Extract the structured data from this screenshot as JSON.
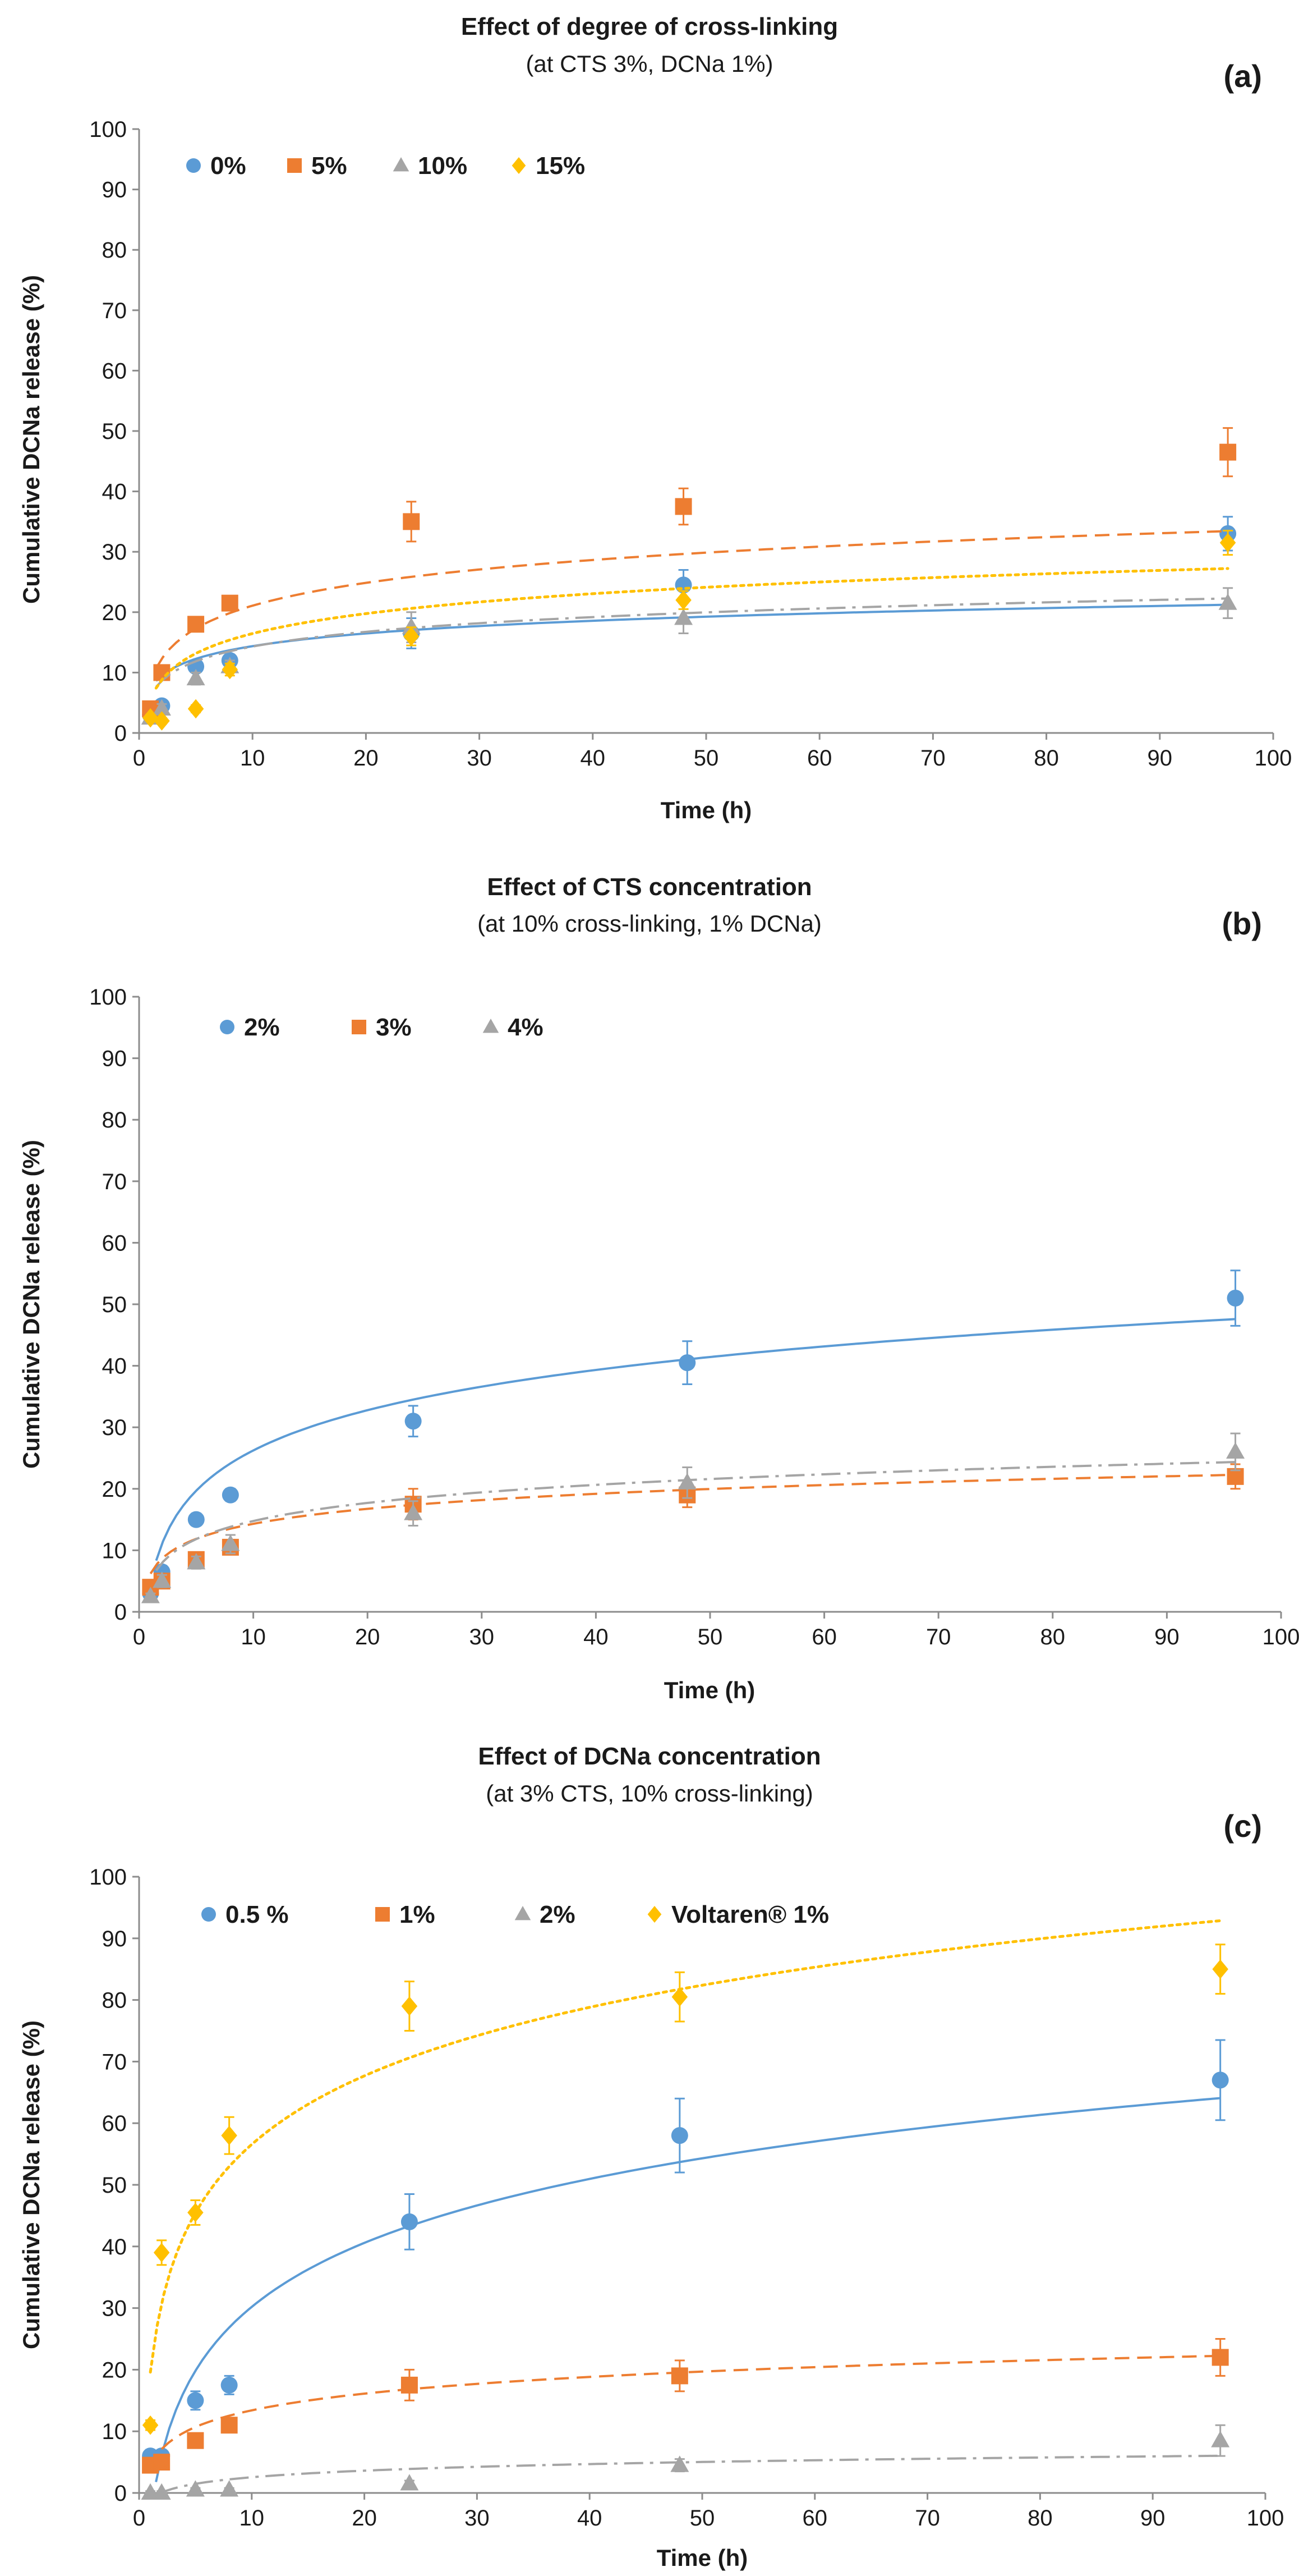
{
  "colors": {
    "blue": "#5b9bd5",
    "orange": "#ed7d31",
    "gray": "#a5a5a5",
    "yellow": "#ffc000"
  },
  "chart_data": [
    {
      "type": "scatter",
      "panel": "(a)",
      "title": "Effect of degree of cross-linking",
      "subtitle": "(at CTS 3%, DCNa 1%)",
      "xlabel": "Time (h)",
      "ylabel": "Cumulative DCNa release (%)",
      "xlim": [
        0,
        100
      ],
      "ylim": [
        0,
        100
      ],
      "xticks": [
        "0",
        "10",
        "20",
        "30",
        "40",
        "50",
        "60",
        "70",
        "80",
        "90",
        "100"
      ],
      "yticks": [
        "0",
        "10",
        "20",
        "30",
        "40",
        "50",
        "60",
        "70",
        "80",
        "90",
        "100"
      ],
      "x": [
        1,
        2,
        5,
        8,
        24,
        48,
        96
      ],
      "series": [
        {
          "name": "0%",
          "marker": "circle",
          "color": "blue",
          "line": "solid",
          "values": [
            3,
            4.5,
            11,
            12,
            16.5,
            24.5,
            33
          ],
          "errors": [
            0.8,
            0.8,
            0.8,
            1,
            2.5,
            2.5,
            2.8
          ],
          "fit": {
            "a": 3.03,
            "b": 7.4,
            "xmin": 1.5,
            "xmax": 96
          }
        },
        {
          "name": "5%",
          "marker": "square",
          "color": "orange",
          "line": "dashed",
          "values": [
            4,
            10,
            18,
            21.5,
            35,
            37.5,
            46.5
          ],
          "errors": [
            0.5,
            1,
            1,
            1,
            3.3,
            3,
            4
          ],
          "fit": {
            "a": 5.46,
            "b": 8.5,
            "xmin": 1.5,
            "xmax": 96
          }
        },
        {
          "name": "10%",
          "marker": "triangle",
          "color": "gray",
          "line": "dashdot",
          "values": [
            2.5,
            4,
            9,
            11,
            17.5,
            19,
            21.5
          ],
          "errors": [
            0.5,
            0.8,
            1,
            1,
            2.5,
            2.5,
            2.5
          ],
          "fit": {
            "a": 3.52,
            "b": 6.2,
            "xmin": 1.5,
            "xmax": 96
          }
        },
        {
          "name": "15%",
          "marker": "diamond",
          "color": "yellow",
          "line": "dotted",
          "values": [
            2.5,
            2,
            4,
            10.5,
            16,
            22,
            31.5
          ],
          "errors": [
            0.5,
            0.5,
            0.6,
            1,
            1.5,
            1.5,
            2
          ],
          "fit": {
            "a": 4.76,
            "b": 5.5,
            "xmin": 1.5,
            "xmax": 96
          }
        }
      ]
    },
    {
      "type": "scatter",
      "panel": "(b)",
      "title": "Effect of CTS concentration",
      "subtitle": "(at 10% cross-linking, 1% DCNa)",
      "xlabel": "Time (h)",
      "ylabel": "Cumulative DCNa release (%)",
      "xlim": [
        0,
        100
      ],
      "ylim": [
        0,
        100
      ],
      "xticks": [
        "0",
        "10",
        "20",
        "30",
        "40",
        "50",
        "60",
        "70",
        "80",
        "90",
        "100"
      ],
      "yticks": [
        "0",
        "10",
        "20",
        "30",
        "40",
        "50",
        "60",
        "70",
        "80",
        "90",
        "100"
      ],
      "x": [
        1,
        2,
        5,
        8,
        24,
        48,
        96
      ],
      "series": [
        {
          "name": "2%",
          "marker": "circle",
          "color": "blue",
          "line": "solid",
          "values": [
            3,
            6.5,
            15,
            19,
            31,
            40.5,
            51
          ],
          "errors": [
            0.8,
            1,
            1,
            1,
            2.5,
            3.5,
            4.5
          ],
          "fit": {
            "a": 9.44,
            "b": 4.5,
            "xmin": 1.5,
            "xmax": 96
          }
        },
        {
          "name": "3%",
          "marker": "square",
          "color": "orange",
          "line": "dashed",
          "values": [
            4,
            5,
            8.5,
            10.5,
            17.5,
            19,
            22
          ],
          "errors": [
            0.5,
            0.8,
            1,
            1,
            2.5,
            2,
            2
          ],
          "fit": {
            "a": 3.52,
            "b": 6.2,
            "xmin": 1,
            "xmax": 96
          }
        },
        {
          "name": "4%",
          "marker": "triangle",
          "color": "gray",
          "line": "dashdot",
          "values": [
            2.5,
            5,
            8,
            11,
            16,
            21,
            26
          ],
          "errors": [
            0.5,
            1,
            1,
            1.5,
            2,
            2.5,
            3
          ],
          "fit": {
            "a": 4.24,
            "b": 5,
            "xmin": 1.5,
            "xmax": 96
          }
        }
      ]
    },
    {
      "type": "scatter",
      "panel": "(c)",
      "title": "Effect of DCNa concentration",
      "subtitle": "(at 3% CTS, 10% cross-linking)",
      "xlabel": "Time (h)",
      "ylabel": "Cumulative DCNa release (%)",
      "xlim": [
        0,
        100
      ],
      "ylim": [
        0,
        100
      ],
      "xticks": [
        "0",
        "10",
        "20",
        "30",
        "40",
        "50",
        "60",
        "70",
        "80",
        "90",
        "100"
      ],
      "yticks": [
        "0",
        "10",
        "20",
        "30",
        "40",
        "50",
        "60",
        "70",
        "80",
        "90",
        "100"
      ],
      "x": [
        1,
        2,
        5,
        8,
        24,
        48,
        96
      ],
      "series": [
        {
          "name": "0.5 %",
          "marker": "circle",
          "color": "blue",
          "line": "solid",
          "values": [
            6,
            6,
            15,
            17.5,
            44,
            58,
            67
          ],
          "errors": [
            1,
            1,
            1.5,
            1.5,
            4.5,
            6,
            6.5
          ],
          "fit": {
            "a": 14.98,
            "b": -4.3,
            "xmin": 1.5,
            "xmax": 96
          }
        },
        {
          "name": "1%",
          "marker": "square",
          "color": "orange",
          "line": "dashed",
          "values": [
            4.5,
            5,
            8.5,
            11,
            17.5,
            19,
            22
          ],
          "errors": [
            0.5,
            0.8,
            1,
            1,
            2.5,
            2.5,
            3
          ],
          "fit": {
            "a": 3.91,
            "b": 4.4,
            "xmin": 2,
            "xmax": 96
          }
        },
        {
          "name": "2%",
          "marker": "triangle",
          "color": "gray",
          "line": "dashdot",
          "values": [
            0,
            0,
            0.5,
            0.5,
            1.5,
            4.5,
            8.5
          ],
          "errors": [
            0.3,
            0.3,
            0.3,
            0.3,
            0.5,
            1,
            2.5
          ],
          "fit": {
            "a": 1.54,
            "b": -1,
            "xmin": 1.8,
            "xmax": 96
          }
        },
        {
          "name": "Voltaren® 1%",
          "marker": "diamond",
          "color": "yellow",
          "line": "dotted",
          "values": [
            11,
            39,
            45.5,
            58,
            79,
            80.5,
            85
          ],
          "errors": [
            0.8,
            2,
            2,
            3,
            4,
            4,
            4
          ],
          "fit": {
            "a": 16.05,
            "b": 19.6,
            "xmin": 1,
            "xmax": 96
          }
        }
      ]
    }
  ]
}
